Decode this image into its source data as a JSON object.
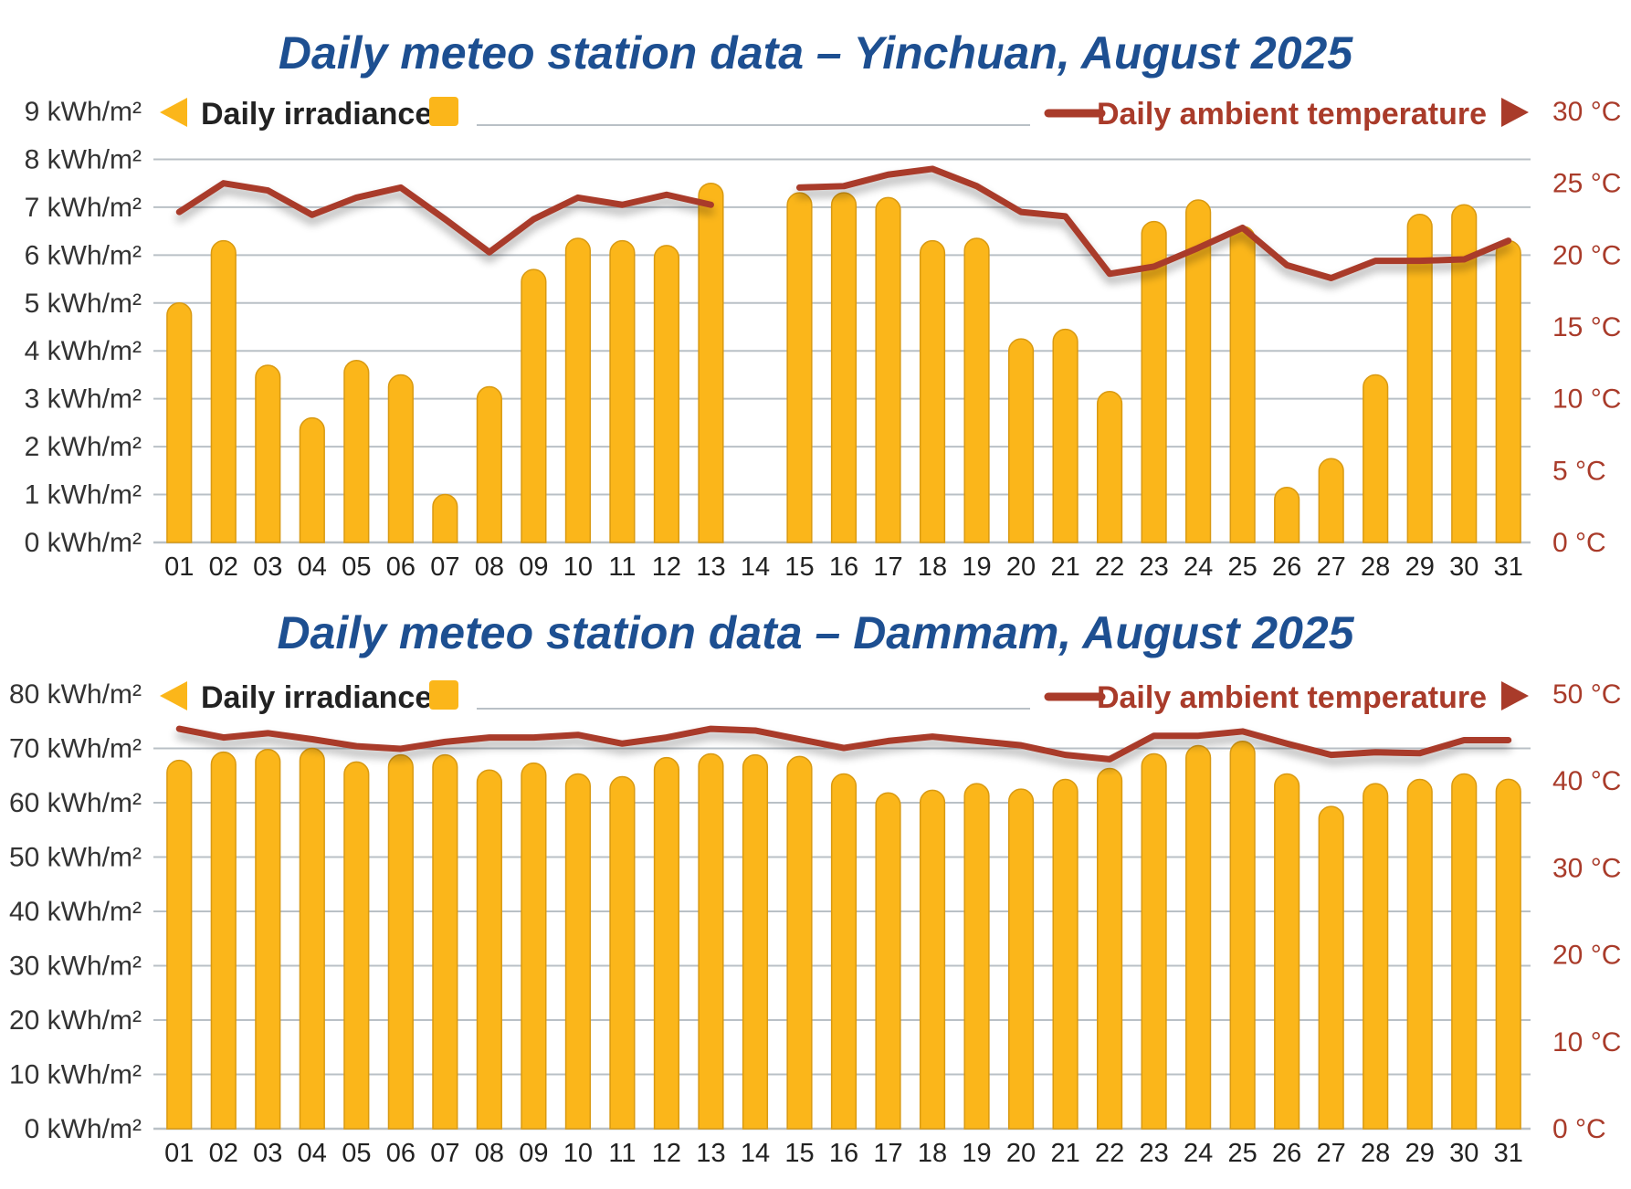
{
  "colors": {
    "bar": "#fbb61a",
    "bar_stroke": "#d99a12",
    "line": "#a93b2a",
    "grid": "#b9c0c6",
    "title": "#1d4f91"
  },
  "chart_data": [
    {
      "type": "bar",
      "title": "Daily meteo station data – Yinchuan, August 2025",
      "categories": [
        "01",
        "02",
        "03",
        "04",
        "05",
        "06",
        "07",
        "08",
        "09",
        "10",
        "11",
        "12",
        "13",
        "14",
        "15",
        "16",
        "17",
        "18",
        "19",
        "20",
        "21",
        "22",
        "23",
        "24",
        "25",
        "26",
        "27",
        "28",
        "29",
        "30",
        "31"
      ],
      "yticks_left": [
        "0 kWh/m²",
        "1 kWh/m²",
        "2 kWh/m²",
        "3 kWh/m²",
        "4 kWh/m²",
        "5 kWh/m²",
        "6 kWh/m²",
        "7 kWh/m²",
        "8 kWh/m²",
        "9 kWh/m²"
      ],
      "yticks_right": [
        "0 °C",
        "5 °C",
        "10 °C",
        "15 °C",
        "20 °C",
        "25 °C",
        "30 °C"
      ],
      "ylim_left": [
        0,
        9
      ],
      "ylim_right": [
        0,
        30
      ],
      "legend": {
        "left_label": "Daily irradiance",
        "right_label": "Daily ambient temperature",
        "placement": "top"
      },
      "series": [
        {
          "name": "Daily irradiance",
          "axis": "left",
          "values": [
            5.0,
            6.3,
            3.7,
            2.6,
            3.8,
            3.5,
            1.0,
            3.25,
            5.7,
            6.35,
            6.3,
            6.2,
            7.5,
            null,
            7.3,
            7.3,
            7.2,
            6.3,
            6.35,
            4.25,
            4.45,
            3.15,
            6.7,
            7.15,
            6.6,
            1.15,
            1.75,
            3.5,
            6.85,
            7.05,
            6.3
          ]
        },
        {
          "name": "Daily ambient temperature",
          "axis": "right",
          "type": "line",
          "values": [
            23.0,
            25.0,
            24.5,
            22.8,
            24.0,
            24.7,
            22.5,
            20.2,
            22.5,
            24.0,
            23.5,
            24.2,
            23.5,
            null,
            24.7,
            24.8,
            25.6,
            26.0,
            24.8,
            23.0,
            22.7,
            18.7,
            19.2,
            20.5,
            21.9,
            19.3,
            18.4,
            19.6,
            19.6,
            19.7,
            21.0
          ]
        }
      ]
    },
    {
      "type": "bar",
      "title": "Daily meteo station data – Dammam, August 2025",
      "categories": [
        "01",
        "02",
        "03",
        "04",
        "05",
        "06",
        "07",
        "08",
        "09",
        "10",
        "11",
        "12",
        "13",
        "14",
        "15",
        "16",
        "17",
        "18",
        "19",
        "20",
        "21",
        "22",
        "23",
        "24",
        "25",
        "26",
        "27",
        "28",
        "29",
        "30",
        "31"
      ],
      "yticks_left": [
        "0 kWh/m²",
        "10 kWh/m²",
        "20 kWh/m²",
        "30 kWh/m²",
        "40 kWh/m²",
        "50 kWh/m²",
        "60 kWh/m²",
        "70 kWh/m²",
        "80 kWh/m²"
      ],
      "yticks_right": [
        "0 °C",
        "10 °C",
        "20 °C",
        "30 °C",
        "40 °C",
        "50 °C"
      ],
      "ylim_left": [
        0,
        80
      ],
      "ylim_right": [
        0,
        50
      ],
      "legend": {
        "left_label": "Daily irradiance",
        "right_label": "Daily ambient temperature",
        "placement": "top"
      },
      "series": [
        {
          "name": "Daily irradiance",
          "axis": "left",
          "values": [
            67.8,
            69.3,
            69.8,
            70.0,
            67.5,
            68.8,
            68.8,
            66.0,
            67.3,
            65.3,
            64.8,
            68.3,
            69.0,
            68.8,
            68.5,
            65.3,
            61.8,
            62.3,
            63.5,
            62.5,
            64.3,
            66.3,
            69.0,
            70.5,
            71.3,
            65.3,
            59.3,
            63.5,
            64.3,
            65.3,
            64.3
          ]
        },
        {
          "name": "Daily ambient temperature",
          "axis": "right",
          "type": "line",
          "values": [
            46.0,
            45.0,
            45.5,
            44.8,
            44.0,
            43.7,
            44.5,
            45.0,
            45.0,
            45.3,
            44.3,
            45.0,
            46.0,
            45.8,
            44.8,
            43.8,
            44.6,
            45.1,
            44.6,
            44.1,
            43.0,
            42.5,
            45.2,
            45.2,
            45.7,
            44.3,
            43.0,
            43.3,
            43.2,
            44.7,
            44.7
          ]
        }
      ]
    }
  ]
}
